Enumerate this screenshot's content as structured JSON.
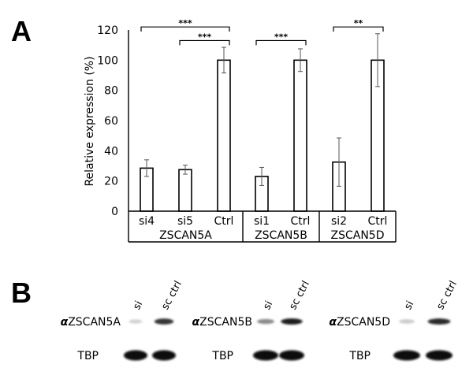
{
  "panels": {
    "a_letter": "A",
    "b_letter": "B"
  },
  "chart_data": {
    "type": "bar",
    "ylabel": "Relative expression (%)",
    "ylim": [
      0,
      120
    ],
    "yticks": [
      0,
      20,
      40,
      60,
      80,
      100,
      120
    ],
    "categories": [
      "si4",
      "si5",
      "Ctrl",
      "si1",
      "Ctrl",
      "si2",
      "Ctrl"
    ],
    "values": [
      28.5,
      27.5,
      100,
      23,
      100,
      32.5,
      100
    ],
    "errors": [
      5.5,
      3,
      8.5,
      6,
      7.5,
      16,
      17.5
    ],
    "groups": [
      {
        "name": "ZSCAN5A",
        "indices": [
          0,
          1,
          2
        ]
      },
      {
        "name": "ZSCAN5B",
        "indices": [
          3,
          4
        ]
      },
      {
        "name": "ZSCAN5D",
        "indices": [
          5,
          6
        ]
      }
    ],
    "significance": [
      {
        "from": 0,
        "to": 2,
        "label": "***",
        "y": 122
      },
      {
        "from": 1,
        "to": 2,
        "label": "***",
        "y": 113
      },
      {
        "from": 3,
        "to": 4,
        "label": "***",
        "y": 113
      },
      {
        "from": 5,
        "to": 6,
        "label": "**",
        "y": 122
      }
    ],
    "bar_fill": "#ffffff",
    "bar_stroke": "#000000"
  },
  "blots": [
    {
      "antibody_symbol": "α",
      "antibody_name": "ZSCAN5A",
      "loading_control": "TBP",
      "lanes": [
        "si",
        "sc ctrl"
      ],
      "target_band_strength": [
        0.12,
        0.85
      ]
    },
    {
      "antibody_symbol": "α",
      "antibody_name": "ZSCAN5B",
      "loading_control": "TBP",
      "lanes": [
        "si",
        "sc ctrl"
      ],
      "target_band_strength": [
        0.45,
        0.95
      ]
    },
    {
      "antibody_symbol": "α",
      "antibody_name": "ZSCAN5D",
      "loading_control": "TBP",
      "lanes": [
        "si",
        "sc ctrl"
      ],
      "target_band_strength": [
        0.15,
        0.9
      ]
    }
  ]
}
